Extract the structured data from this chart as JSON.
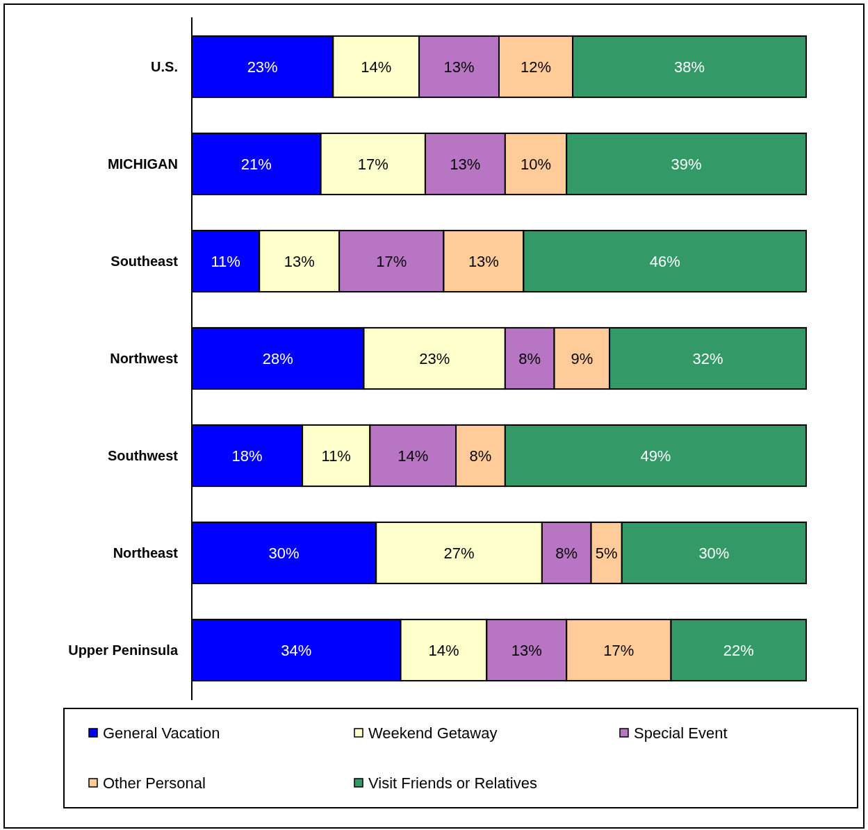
{
  "chart_data": {
    "type": "bar",
    "orientation": "horizontal",
    "stacked": true,
    "categories": [
      "U.S.",
      "MICHIGAN",
      "Southeast",
      "Northwest",
      "Southwest",
      "Northeast",
      "Upper Peninsula"
    ],
    "xlim": [
      0,
      100
    ],
    "tick_labels": "y",
    "legend": "bottom",
    "series": [
      {
        "name": "General Vacation",
        "color": "#0000ff",
        "values": [
          23,
          21,
          11,
          28,
          18,
          30,
          34
        ],
        "value_labels": [
          "23%",
          "21%",
          "11%",
          "28%",
          "18%",
          "30%",
          "34%"
        ]
      },
      {
        "name": "Weekend Getaway",
        "color": "#ffffcc",
        "values": [
          14,
          17,
          13,
          23,
          11,
          27,
          14
        ],
        "value_labels": [
          "14%",
          "17%",
          "13%",
          "23%",
          "11%",
          "27%",
          "14%"
        ]
      },
      {
        "name": "Special Event",
        "color": "#b875c4",
        "values": [
          13,
          13,
          17,
          8,
          14,
          8,
          13
        ],
        "value_labels": [
          "13%",
          "13%",
          "17%",
          "8%",
          "14%",
          "8%",
          "13%"
        ]
      },
      {
        "name": "Other Personal",
        "color": "#ffcc99",
        "values": [
          12,
          10,
          13,
          9,
          8,
          5,
          17
        ],
        "value_labels": [
          "12%",
          "10%",
          "13%",
          "9%",
          "8%",
          "5%",
          "17%"
        ]
      },
      {
        "name": "Visit Friends or Relatives",
        "color": "#339966",
        "values": [
          38,
          39,
          46,
          32,
          49,
          30,
          22
        ],
        "value_labels": [
          "38%",
          "39%",
          "46%",
          "32%",
          "49%",
          "30%",
          "22%"
        ]
      }
    ]
  }
}
